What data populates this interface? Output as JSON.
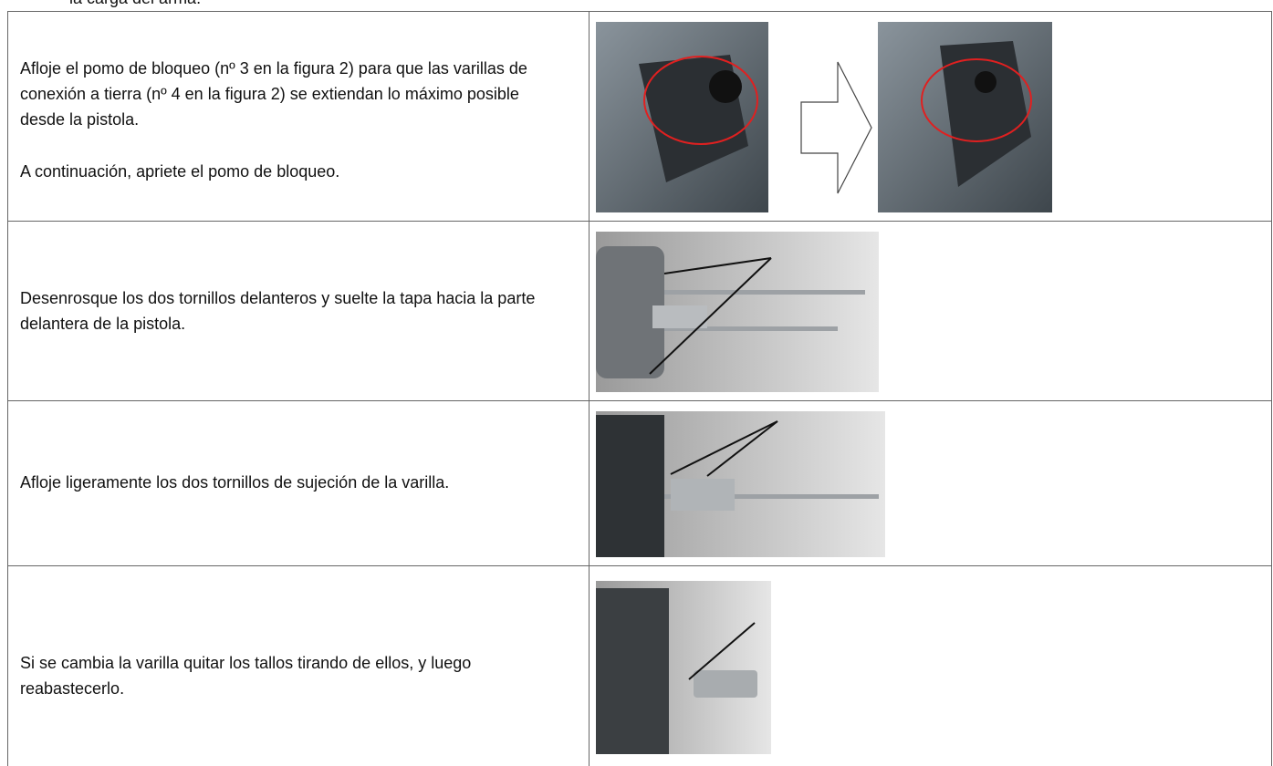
{
  "header_fragment": "la carga del arma.",
  "table": {
    "rows": [
      {
        "text": [
          "Afloje el pomo de bloqueo (nº 3 en la figura 2) para que las varillas de conexión a tierra (nº 4 en la figura 2) se extiendan lo máximo posible desde la pistola.",
          "A continuación, apriete el pomo de bloqueo."
        ]
      },
      {
        "text": [
          "Desenrosque los dos tornillos delanteros y suelte la tapa hacia la parte delantera de la pistola."
        ]
      },
      {
        "text": [
          "Afloje ligeramente los dos tornillos de sujeción de la varilla."
        ]
      },
      {
        "text": [
          "Si se cambia la varilla quitar los tallos tirando de ellos, y luego reabastecerlo."
        ]
      }
    ]
  }
}
